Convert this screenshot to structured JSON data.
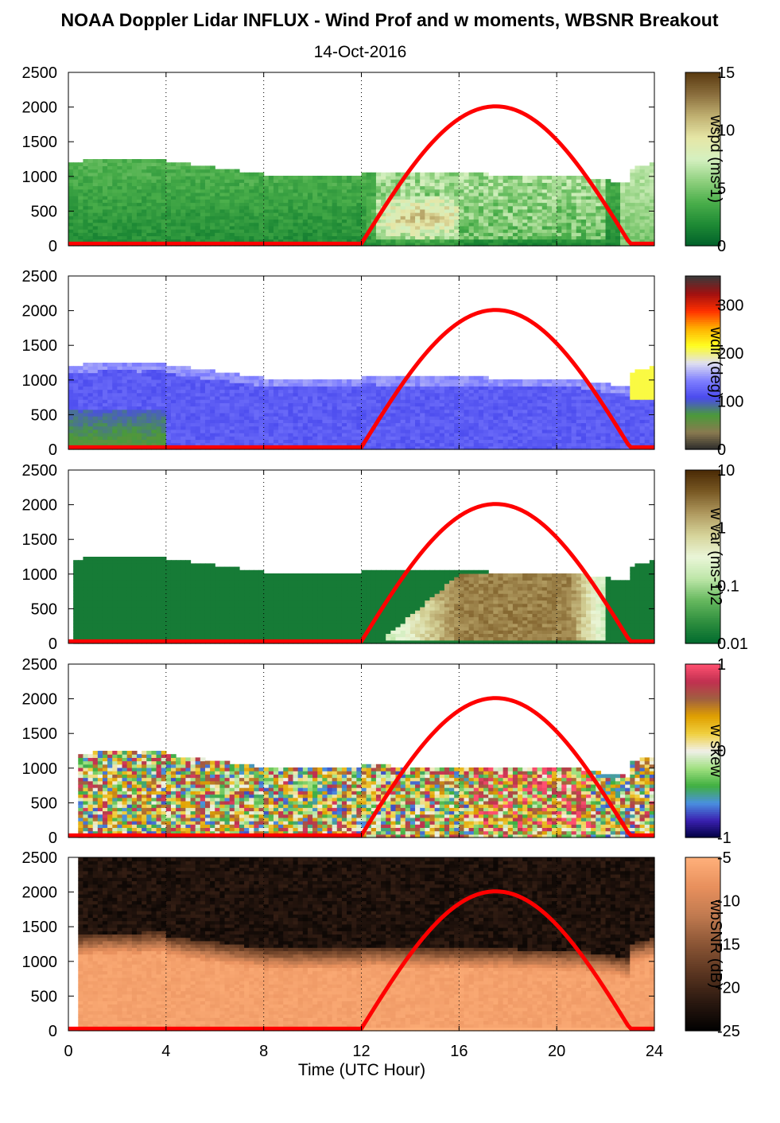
{
  "title": "NOAA Doppler Lidar INFLUX - Wind Prof and w moments, WBSNR Breakout",
  "subtitle": "14-Oct-2016",
  "chart_data": {
    "type": "heatmap",
    "xlabel": "Time (UTC Hour)",
    "xlim": [
      0,
      24
    ],
    "x_ticks": [
      "0",
      "4",
      "8",
      "12",
      "16",
      "20",
      "24"
    ],
    "ylim": [
      0,
      2500
    ],
    "y_ticks": [
      "0",
      "500",
      "1000",
      "1500",
      "2000",
      "2500"
    ],
    "overlay": {
      "description": "red curve",
      "color": "#ff0000",
      "start_hour": 12.0,
      "peak_hour": 17.5,
      "end_hour": 23.0,
      "peak_value": 2010,
      "base_value": 30
    },
    "panels": [
      {
        "id": "wspd",
        "colorbar_label": "wspd (ms-1)",
        "colorbar_ticks": [
          "0",
          "5",
          "10",
          "15"
        ],
        "range": [
          0,
          15
        ],
        "colormap": [
          "#00602a",
          "#1e8a35",
          "#4aae4a",
          "#8fd07e",
          "#d4f0c0",
          "#e6e6a6",
          "#c0b071",
          "#8a6e3d",
          "#5a3a10"
        ]
      },
      {
        "id": "wdir",
        "colorbar_label": "wdir (deg)",
        "colorbar_ticks": [
          "0",
          "100",
          "200",
          "300"
        ],
        "range": [
          0,
          360
        ],
        "colormap": [
          "#2a2a2a",
          "#8a7a50",
          "#4a9a3a",
          "#4a4aee",
          "#8080ff",
          "#e0e0f0",
          "#ffff20",
          "#ffb000",
          "#ff3000",
          "#a01010",
          "#3a3a3a"
        ]
      },
      {
        "id": "wvar",
        "colorbar_label": "w var (ms-1)2",
        "colorbar_ticks": [
          "0.01",
          "0.1",
          "1",
          "10"
        ],
        "range": [
          0.01,
          10
        ],
        "log": true,
        "colormap": [
          "#006a2e",
          "#2e8e3e",
          "#66b85e",
          "#bde6a8",
          "#eaf6d8",
          "#d6d49a",
          "#b09a60",
          "#7a5a25",
          "#4a2a05"
        ]
      },
      {
        "id": "wskew",
        "colorbar_label": "w skew",
        "colorbar_ticks": [
          "-1",
          "0",
          "1"
        ],
        "range": [
          -1,
          1
        ],
        "colormap": [
          "#000040",
          "#3a20b0",
          "#4a90e0",
          "#40b040",
          "#a0e080",
          "#f0f0e8",
          "#f0d040",
          "#e0a000",
          "#a06040",
          "#c03050",
          "#ff5070"
        ]
      },
      {
        "id": "wbsnr",
        "colorbar_label": "wbSNR (dB)",
        "colorbar_ticks": [
          "-25",
          "-20",
          "-15",
          "-10",
          "-5"
        ],
        "range": [
          -25,
          -5
        ],
        "colormap": [
          "#000000",
          "#2a1810",
          "#5a3520",
          "#8a5535",
          "#c07a50",
          "#e8905d",
          "#ffb07a"
        ]
      }
    ]
  }
}
